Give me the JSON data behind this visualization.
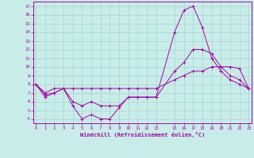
{
  "xlabel": "Windchill (Refroidissement éolien,°C)",
  "bg_color": "#c8ede8",
  "grid_color": "#a8d4ce",
  "line_color": "#aa00aa",
  "x": [
    0,
    1,
    2,
    3,
    4,
    5,
    6,
    7,
    8,
    9,
    10,
    11,
    12,
    13,
    15,
    16,
    17,
    18,
    19,
    20,
    21,
    22,
    23
  ],
  "line1": [
    8.0,
    7.0,
    7.5,
    7.5,
    7.5,
    7.5,
    7.5,
    7.5,
    7.5,
    7.5,
    7.5,
    7.5,
    7.5,
    7.5,
    8.5,
    9.0,
    9.5,
    9.5,
    10.0,
    10.0,
    10.0,
    9.8,
    7.5
  ],
  "line2": [
    8.0,
    6.8,
    7.0,
    7.5,
    5.5,
    4.0,
    4.5,
    4.0,
    4.0,
    5.3,
    6.5,
    6.5,
    6.5,
    6.5,
    14.0,
    16.5,
    17.0,
    14.5,
    11.0,
    9.5,
    8.5,
    8.0,
    7.5
  ],
  "line3": [
    8.0,
    6.5,
    7.0,
    7.5,
    6.0,
    5.5,
    6.0,
    5.5,
    5.5,
    5.5,
    6.5,
    6.5,
    6.5,
    6.5,
    9.5,
    10.5,
    12.0,
    12.0,
    11.5,
    10.0,
    9.0,
    8.5,
    7.5
  ],
  "xlim": [
    -0.3,
    23.3
  ],
  "ylim": [
    3.5,
    17.5
  ],
  "yticks": [
    4,
    5,
    6,
    7,
    8,
    9,
    10,
    11,
    12,
    13,
    14,
    15,
    16,
    17
  ],
  "xticks": [
    0,
    1,
    2,
    3,
    4,
    5,
    6,
    7,
    8,
    9,
    10,
    11,
    12,
    13,
    15,
    16,
    17,
    18,
    19,
    20,
    21,
    22,
    23
  ]
}
